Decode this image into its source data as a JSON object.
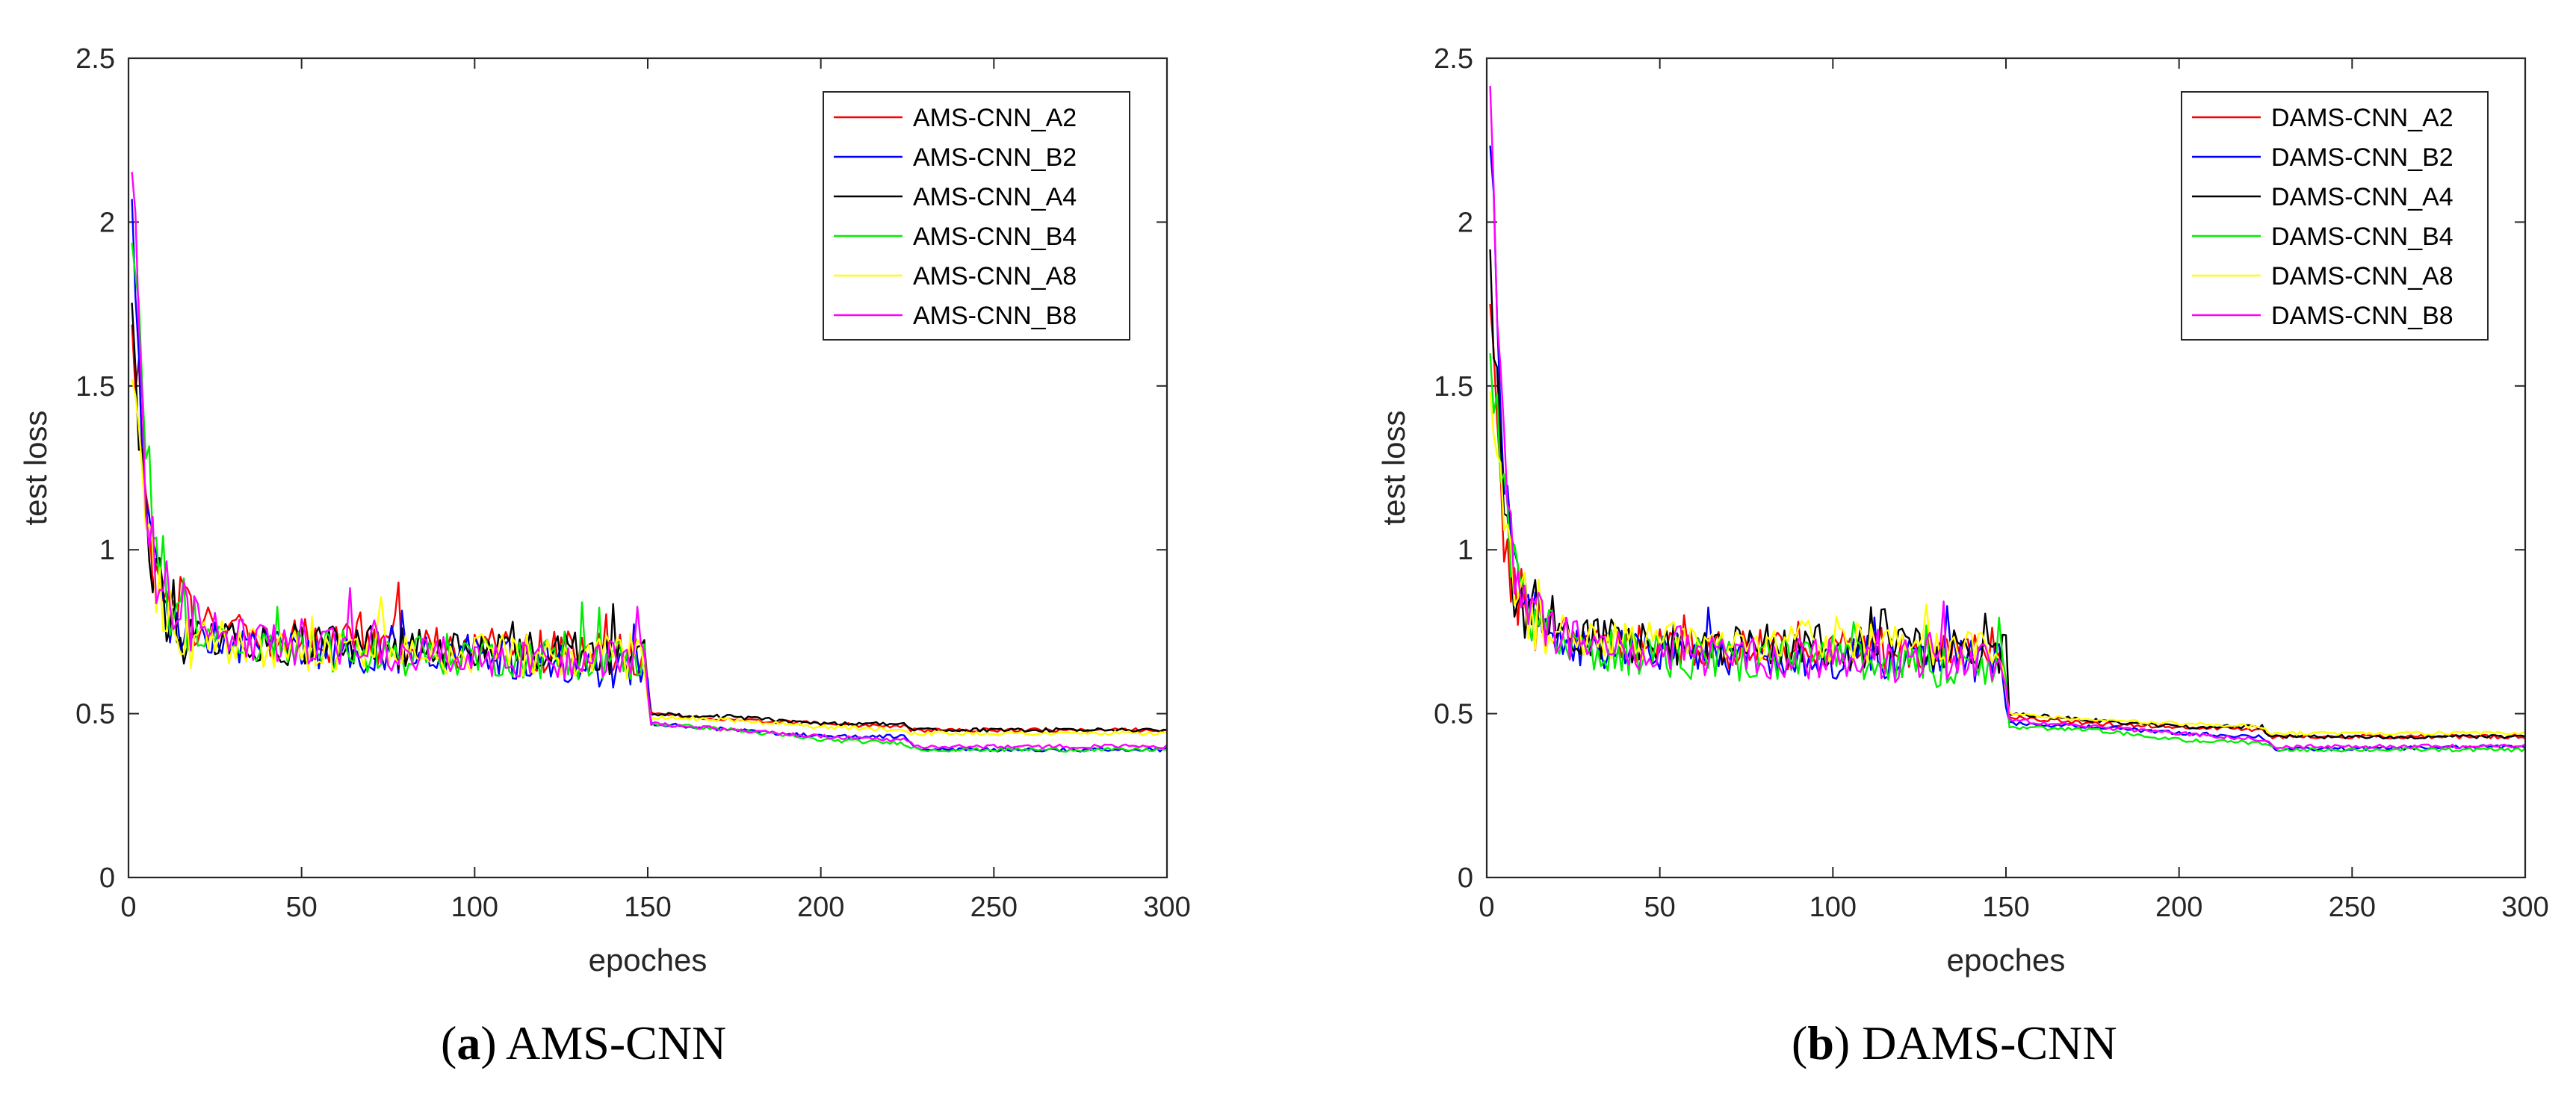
{
  "chart_data": [
    {
      "type": "line",
      "title": "",
      "caption": {
        "letter": "a",
        "text": "AMS-CNN"
      },
      "xlabel": "epoches",
      "ylabel": "test loss",
      "xlim": [
        0,
        300
      ],
      "ylim": [
        0,
        2.5
      ],
      "xticks": [
        "0",
        "50",
        "100",
        "150",
        "200",
        "250",
        "300"
      ],
      "yticks": [
        "0",
        "0.5",
        "1",
        "1.5",
        "2",
        "2.5"
      ],
      "legend_position": "top-right",
      "series": [
        {
          "name": "AMS-CNN_A2",
          "color": "#ff0000",
          "values": [
            [
              1,
              1.6
            ],
            [
              3,
              1.5
            ],
            [
              5,
              1.1
            ],
            [
              8,
              0.95
            ],
            [
              12,
              0.85
            ],
            [
              20,
              0.78
            ],
            [
              30,
              0.75
            ],
            [
              40,
              0.73
            ],
            [
              60,
              0.72
            ],
            [
              80,
              0.71
            ],
            [
              100,
              0.7
            ],
            [
              120,
              0.69
            ],
            [
              149,
              0.68
            ],
            [
              151,
              0.5
            ],
            [
              175,
              0.48
            ],
            [
              200,
              0.47
            ],
            [
              224,
              0.46
            ],
            [
              226,
              0.45
            ],
            [
              300,
              0.45
            ]
          ]
        },
        {
          "name": "AMS-CNN_B2",
          "color": "#0000ff",
          "values": [
            [
              1,
              2.0
            ],
            [
              3,
              1.6
            ],
            [
              5,
              1.1
            ],
            [
              8,
              0.92
            ],
            [
              12,
              0.82
            ],
            [
              20,
              0.75
            ],
            [
              30,
              0.72
            ],
            [
              40,
              0.7
            ],
            [
              60,
              0.69
            ],
            [
              80,
              0.68
            ],
            [
              100,
              0.67
            ],
            [
              120,
              0.66
            ],
            [
              149,
              0.63
            ],
            [
              151,
              0.47
            ],
            [
              175,
              0.45
            ],
            [
              200,
              0.43
            ],
            [
              224,
              0.43
            ],
            [
              228,
              0.39
            ],
            [
              300,
              0.39
            ]
          ]
        },
        {
          "name": "AMS-CNN_A4",
          "color": "#000000",
          "values": [
            [
              1,
              1.7
            ],
            [
              3,
              1.4
            ],
            [
              5,
              1.05
            ],
            [
              8,
              0.9
            ],
            [
              12,
              0.8
            ],
            [
              20,
              0.74
            ],
            [
              30,
              0.72
            ],
            [
              40,
              0.71
            ],
            [
              60,
              0.71
            ],
            [
              80,
              0.7
            ],
            [
              100,
              0.7
            ],
            [
              120,
              0.69
            ],
            [
              149,
              0.68
            ],
            [
              151,
              0.5
            ],
            [
              175,
              0.49
            ],
            [
              200,
              0.47
            ],
            [
              224,
              0.47
            ],
            [
              226,
              0.45
            ],
            [
              300,
              0.45
            ]
          ]
        },
        {
          "name": "AMS-CNN_B4",
          "color": "#00ee00",
          "values": [
            [
              1,
              1.9
            ],
            [
              3,
              1.7
            ],
            [
              5,
              1.3
            ],
            [
              8,
              1.0
            ],
            [
              12,
              0.85
            ],
            [
              20,
              0.75
            ],
            [
              30,
              0.71
            ],
            [
              40,
              0.7
            ],
            [
              60,
              0.69
            ],
            [
              80,
              0.68
            ],
            [
              100,
              0.68
            ],
            [
              120,
              0.67
            ],
            [
              149,
              0.66
            ],
            [
              151,
              0.47
            ],
            [
              175,
              0.45
            ],
            [
              200,
              0.42
            ],
            [
              224,
              0.41
            ],
            [
              228,
              0.39
            ],
            [
              300,
              0.39
            ]
          ]
        },
        {
          "name": "AMS-CNN_A8",
          "color": "#ffff00",
          "values": [
            [
              1,
              1.5
            ],
            [
              3,
              1.3
            ],
            [
              5,
              1.0
            ],
            [
              8,
              0.88
            ],
            [
              12,
              0.8
            ],
            [
              20,
              0.74
            ],
            [
              30,
              0.71
            ],
            [
              40,
              0.7
            ],
            [
              60,
              0.69
            ],
            [
              80,
              0.69
            ],
            [
              100,
              0.68
            ],
            [
              120,
              0.68
            ],
            [
              149,
              0.67
            ],
            [
              151,
              0.49
            ],
            [
              175,
              0.48
            ],
            [
              200,
              0.46
            ],
            [
              224,
              0.45
            ],
            [
              226,
              0.44
            ],
            [
              300,
              0.44
            ]
          ]
        },
        {
          "name": "AMS-CNN_B8",
          "color": "#ff00ff",
          "values": [
            [
              1,
              2.15
            ],
            [
              3,
              1.7
            ],
            [
              5,
              1.2
            ],
            [
              8,
              0.95
            ],
            [
              12,
              0.85
            ],
            [
              20,
              0.78
            ],
            [
              30,
              0.74
            ],
            [
              40,
              0.72
            ],
            [
              60,
              0.7
            ],
            [
              80,
              0.69
            ],
            [
              100,
              0.68
            ],
            [
              120,
              0.67
            ],
            [
              149,
              0.66
            ],
            [
              151,
              0.47
            ],
            [
              175,
              0.45
            ],
            [
              200,
              0.43
            ],
            [
              224,
              0.42
            ],
            [
              228,
              0.4
            ],
            [
              300,
              0.4
            ]
          ]
        }
      ]
    },
    {
      "type": "line",
      "title": "",
      "caption": {
        "letter": "b",
        "text": "DAMS-CNN"
      },
      "xlabel": "epoches",
      "ylabel": "test loss",
      "xlim": [
        0,
        300
      ],
      "ylim": [
        0,
        2.5
      ],
      "xticks": [
        "0",
        "50",
        "100",
        "150",
        "200",
        "250",
        "300"
      ],
      "yticks": [
        "0",
        "0.5",
        "1",
        "1.5",
        "2",
        "2.5"
      ],
      "legend_position": "top-right",
      "series": [
        {
          "name": "DAMS-CNN_A2",
          "color": "#ff0000",
          "values": [
            [
              1,
              1.7
            ],
            [
              3,
              1.4
            ],
            [
              5,
              1.05
            ],
            [
              8,
              0.9
            ],
            [
              12,
              0.8
            ],
            [
              20,
              0.74
            ],
            [
              30,
              0.72
            ],
            [
              40,
              0.71
            ],
            [
              60,
              0.7
            ],
            [
              80,
              0.7
            ],
            [
              100,
              0.7
            ],
            [
              120,
              0.7
            ],
            [
              149,
              0.7
            ],
            [
              151,
              0.49
            ],
            [
              175,
              0.47
            ],
            [
              200,
              0.46
            ],
            [
              224,
              0.45
            ],
            [
              226,
              0.43
            ],
            [
              300,
              0.43
            ]
          ]
        },
        {
          "name": "DAMS-CNN_B2",
          "color": "#0000ff",
          "values": [
            [
              1,
              2.2
            ],
            [
              3,
              1.8
            ],
            [
              5,
              1.2
            ],
            [
              8,
              0.9
            ],
            [
              12,
              0.8
            ],
            [
              20,
              0.73
            ],
            [
              30,
              0.7
            ],
            [
              40,
              0.69
            ],
            [
              60,
              0.68
            ],
            [
              80,
              0.68
            ],
            [
              100,
              0.67
            ],
            [
              120,
              0.67
            ],
            [
              149,
              0.66
            ],
            [
              151,
              0.47
            ],
            [
              175,
              0.46
            ],
            [
              200,
              0.44
            ],
            [
              224,
              0.43
            ],
            [
              228,
              0.39
            ],
            [
              300,
              0.4
            ]
          ]
        },
        {
          "name": "DAMS-CNN_A4",
          "color": "#000000",
          "values": [
            [
              1,
              1.9
            ],
            [
              3,
              1.5
            ],
            [
              5,
              1.1
            ],
            [
              8,
              0.9
            ],
            [
              12,
              0.82
            ],
            [
              20,
              0.75
            ],
            [
              30,
              0.73
            ],
            [
              40,
              0.72
            ],
            [
              60,
              0.71
            ],
            [
              80,
              0.71
            ],
            [
              100,
              0.7
            ],
            [
              120,
              0.7
            ],
            [
              149,
              0.68
            ],
            [
              151,
              0.5
            ],
            [
              175,
              0.48
            ],
            [
              200,
              0.46
            ],
            [
              224,
              0.46
            ],
            [
              226,
              0.43
            ],
            [
              300,
              0.43
            ]
          ]
        },
        {
          "name": "DAMS-CNN_B4",
          "color": "#00ee00",
          "values": [
            [
              1,
              1.6
            ],
            [
              3,
              1.4
            ],
            [
              5,
              1.2
            ],
            [
              8,
              0.95
            ],
            [
              12,
              0.82
            ],
            [
              20,
              0.74
            ],
            [
              30,
              0.7
            ],
            [
              40,
              0.68
            ],
            [
              60,
              0.67
            ],
            [
              80,
              0.66
            ],
            [
              100,
              0.66
            ],
            [
              120,
              0.65
            ],
            [
              149,
              0.63
            ],
            [
              151,
              0.46
            ],
            [
              175,
              0.45
            ],
            [
              200,
              0.42
            ],
            [
              224,
              0.41
            ],
            [
              228,
              0.39
            ],
            [
              300,
              0.39
            ]
          ]
        },
        {
          "name": "DAMS-CNN_A8",
          "color": "#ffff00",
          "values": [
            [
              1,
              1.5
            ],
            [
              3,
              1.3
            ],
            [
              5,
              1.05
            ],
            [
              8,
              0.9
            ],
            [
              12,
              0.82
            ],
            [
              20,
              0.76
            ],
            [
              30,
              0.73
            ],
            [
              40,
              0.72
            ],
            [
              60,
              0.72
            ],
            [
              80,
              0.72
            ],
            [
              100,
              0.72
            ],
            [
              120,
              0.71
            ],
            [
              149,
              0.7
            ],
            [
              151,
              0.5
            ],
            [
              175,
              0.48
            ],
            [
              200,
              0.47
            ],
            [
              224,
              0.46
            ],
            [
              226,
              0.44
            ],
            [
              300,
              0.44
            ]
          ]
        },
        {
          "name": "DAMS-CNN_B8",
          "color": "#ff00ff",
          "values": [
            [
              1,
              2.45
            ],
            [
              3,
              1.8
            ],
            [
              5,
              1.3
            ],
            [
              8,
              0.95
            ],
            [
              12,
              0.82
            ],
            [
              20,
              0.74
            ],
            [
              30,
              0.71
            ],
            [
              40,
              0.69
            ],
            [
              60,
              0.68
            ],
            [
              80,
              0.67
            ],
            [
              100,
              0.66
            ],
            [
              120,
              0.66
            ],
            [
              149,
              0.65
            ],
            [
              151,
              0.48
            ],
            [
              175,
              0.46
            ],
            [
              200,
              0.44
            ],
            [
              224,
              0.42
            ],
            [
              228,
              0.4
            ],
            [
              300,
              0.4
            ]
          ]
        }
      ]
    }
  ]
}
